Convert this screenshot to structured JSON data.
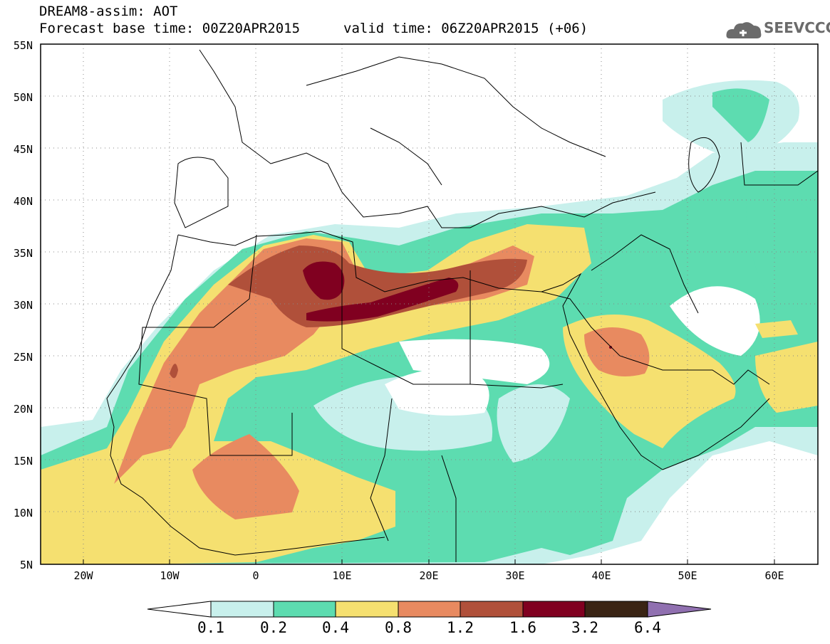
{
  "title": {
    "line1": "DREAM8-assim: AOT",
    "line2_left": "Forecast base time: 00Z20APR2015",
    "line2_right": "valid time: 06Z20APR2015 (+06)"
  },
  "logo": {
    "text": "SEEVCCC",
    "icon": "cloud-logo-icon"
  },
  "map": {
    "product": "dust aerosol optical thickness",
    "lon_range": [
      -25,
      65
    ],
    "lat_range": [
      5,
      55
    ],
    "lat_labels": [
      "55N",
      "50N",
      "45N",
      "40N",
      "35N",
      "30N",
      "25N",
      "20N",
      "15N",
      "10N",
      "5N"
    ],
    "lon_labels": [
      "20W",
      "10W",
      "0",
      "10E",
      "20E",
      "30E",
      "40E",
      "50E",
      "60E"
    ],
    "grid": "dotted"
  },
  "colorbar": {
    "levels": [
      "0.1",
      "0.2",
      "0.4",
      "0.8",
      "1.2",
      "1.6",
      "3.2",
      "6.4"
    ],
    "colors": [
      "#c8f0ec",
      "#5ddcb0",
      "#f5e070",
      "#e88a60",
      "#b0503a",
      "#800020",
      "#3a2414",
      "#9070b0"
    ],
    "below_color": "#ffffff"
  }
}
